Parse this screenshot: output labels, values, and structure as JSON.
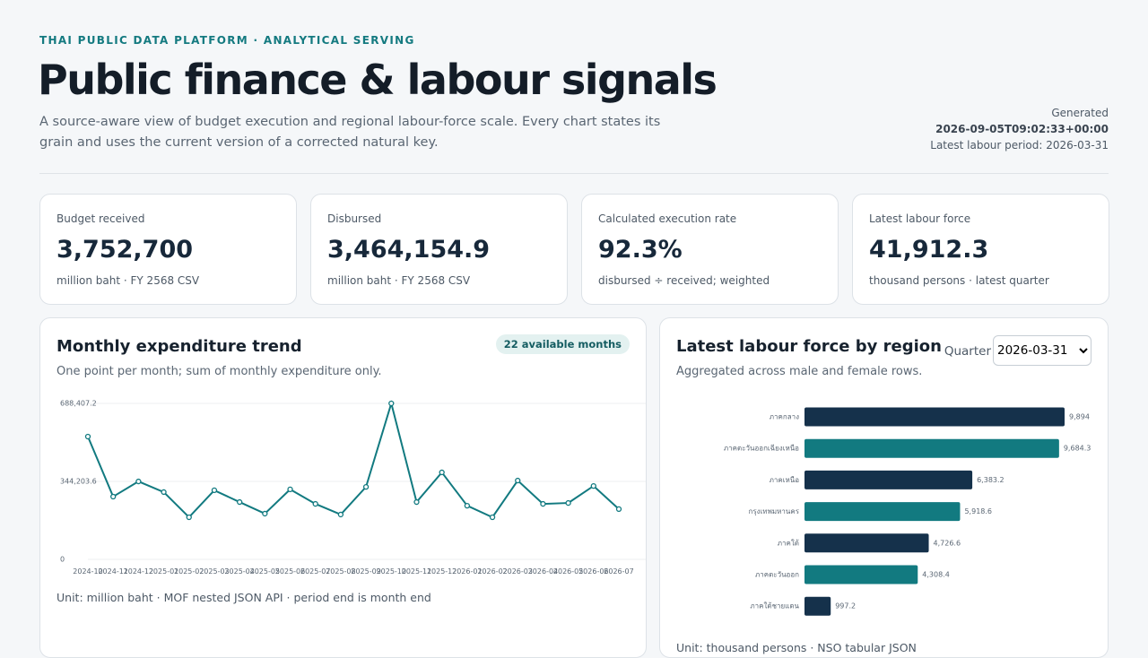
{
  "header": {
    "eyebrow": "THAI PUBLIC DATA PLATFORM · ANALYTICAL SERVING",
    "title": "Public finance & labour signals",
    "subtitle": "A source-aware view of budget execution and regional labour-force scale. Every chart states its grain and uses the current version of a corrected natural key.",
    "generated_label": "Generated",
    "generated_at": "2026-09-05T09:02:33+00:00",
    "latest_period": "Latest labour period: 2026-03-31"
  },
  "kpis": [
    {
      "label": "Budget received",
      "value": "3,752,700",
      "note": "million baht · FY 2568 CSV"
    },
    {
      "label": "Disbursed",
      "value": "3,464,154.9",
      "note": "million baht · FY 2568 CSV"
    },
    {
      "label": "Calculated execution rate",
      "value": "92.3%",
      "note": "disbursed ÷ received; weighted"
    },
    {
      "label": "Latest labour force",
      "value": "41,912.3",
      "note": "thousand persons · latest quarter"
    }
  ],
  "expenditure_panel": {
    "badge": "22 available months",
    "footnote": "Unit: million baht · MOF nested JSON API · period end is month end",
    "chart_data": {
      "type": "line",
      "title": "Monthly expenditure trend",
      "subtitle": "One point per month; sum of monthly expenditure only.",
      "color": "#127a80",
      "categories": [
        "2024-10",
        "2024-11",
        "2024-12",
        "2025-01",
        "2025-02",
        "2025-03",
        "2025-04",
        "2025-05",
        "2025-06",
        "2025-07",
        "2025-08",
        "2025-09",
        "2025-10",
        "2025-11",
        "2025-12",
        "2026-01",
        "2026-02",
        "2026-03",
        "2026-04",
        "2026-05",
        "2026-06",
        "2026-07"
      ],
      "values": [
        542000,
        277000,
        344000,
        297000,
        186000,
        305000,
        253000,
        202000,
        309000,
        245000,
        198000,
        320000,
        688407.2,
        253000,
        384000,
        237000,
        186000,
        348000,
        245000,
        249000,
        324000,
        222000
      ],
      "ylim": [
        0,
        688407.2
      ],
      "yticks": [
        0,
        {
          "value": 344203.6,
          "label": "344,203.6"
        },
        {
          "value": 688407.2,
          "label": "688,407.2"
        }
      ],
      "grid": true
    }
  },
  "labour_panel": {
    "select_label": "Quarter",
    "select_value": "2026-03-31",
    "footnote": "Unit: thousand persons · NSO tabular JSON",
    "chart_data": {
      "type": "hbar",
      "title": "Latest labour force by region",
      "subtitle": "Aggregated across male and female rows.",
      "categories": [
        "ภาคกลาง",
        "ภาคตะวันออกเฉียงเหนือ",
        "ภาคเหนือ",
        "กรุงเทพมหานคร",
        "ภาคใต้",
        "ภาคตะวันออก",
        "ภาคใต้ชายแดน"
      ],
      "values": [
        9894,
        9684.3,
        6383.2,
        5918.6,
        4726.6,
        4308.4,
        997.2
      ],
      "value_labels": [
        "9,894",
        "9,684.3",
        "6,383.2",
        "5,918.6",
        "4,726.6",
        "4,308.4",
        "997.2"
      ],
      "colors": [
        "#15314b",
        "#127a80",
        "#15314b",
        "#127a80",
        "#15314b",
        "#127a80",
        "#15314b"
      ]
    }
  }
}
